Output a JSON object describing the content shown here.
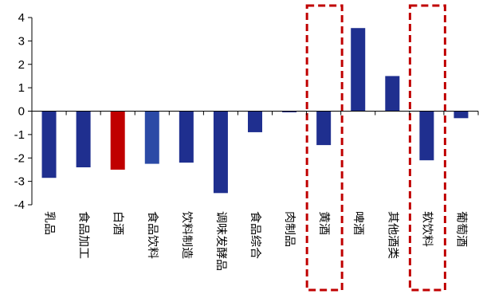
{
  "chart_data": {
    "type": "bar",
    "categories": [
      "乳品",
      "食品加工",
      "白酒",
      "食品饮料",
      "饮料制造",
      "调味发酵品",
      "食品综合",
      "肉制品",
      "黄酒",
      "啤酒",
      "其他酒类",
      "软饮料",
      "葡萄酒"
    ],
    "values": [
      -2.85,
      -2.4,
      -2.5,
      -2.25,
      -2.2,
      -3.5,
      -0.9,
      -0.05,
      -1.45,
      3.55,
      1.5,
      -2.1,
      -0.3
    ],
    "bar_colors": [
      "#1f2f8f",
      "#1f2f8f",
      "#c00000",
      "#2b4aa6",
      "#1f2f8f",
      "#1f2f8f",
      "#1f2f8f",
      "#1f2f8f",
      "#1f2f8f",
      "#1f2f8f",
      "#1f2f8f",
      "#1f2f8f",
      "#1f2f8f"
    ],
    "ylim": [
      -4,
      4
    ],
    "yticks": [
      "-4",
      "-3",
      "-2",
      "-1",
      "0",
      "1",
      "2",
      "3",
      "4"
    ],
    "highlight_categories": [
      "黄酒",
      "软饮料"
    ],
    "highlight_color": "#c00000",
    "grid": false,
    "legend": "none",
    "title": "",
    "xlabel": "",
    "ylabel": ""
  }
}
